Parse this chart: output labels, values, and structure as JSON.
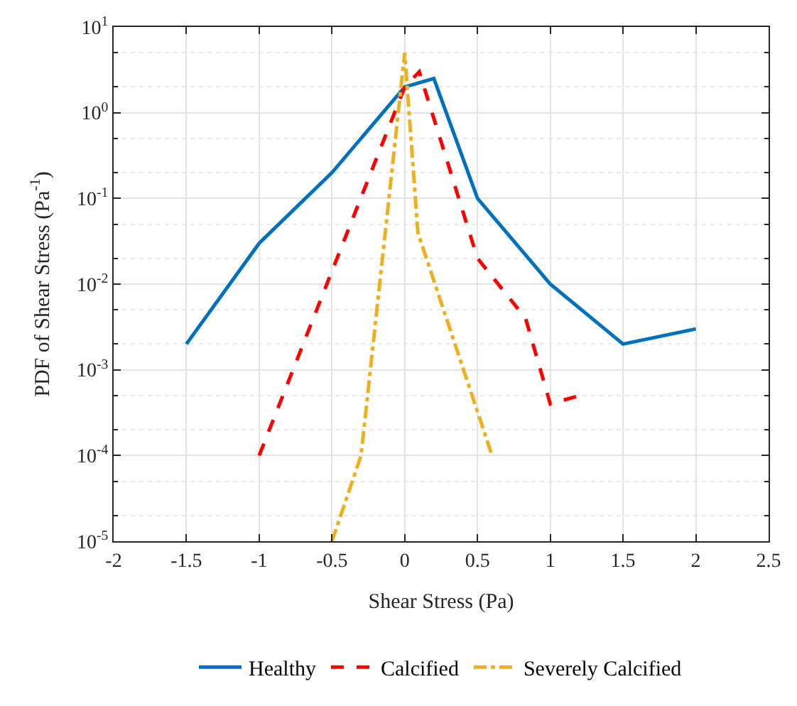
{
  "chart_data": {
    "type": "line",
    "xlabel": "Shear Stress (Pa)",
    "ylabel": "PDF of Shear Stress (Pa$^{-1}$)",
    "log": "y",
    "grid": true,
    "legend": "bottom",
    "xlim": [
      -2,
      2.5
    ],
    "xticks": [
      -2,
      -1.5,
      -1,
      -0.5,
      0,
      0.5,
      1,
      1.5,
      2,
      2.5
    ],
    "ylim": [
      1e-05,
      10
    ],
    "yticks": [
      {
        "value": 1e-05,
        "label": "10$^{-5}$"
      },
      {
        "value": 0.0001,
        "label": "10$^{-4}$"
      },
      {
        "value": 0.001,
        "label": "10$^{-3}$"
      },
      {
        "value": 0.01,
        "label": "10$^{-2}$"
      },
      {
        "value": 0.1,
        "label": "10$^{-1}$"
      },
      {
        "value": 1,
        "label": "10$^{0}$"
      },
      {
        "value": 10,
        "label": "10$^{1}$"
      }
    ],
    "series": [
      {
        "name": "Healthy",
        "color": "#0072bd",
        "line_style": "solid",
        "x": [
          -1.5,
          -1,
          -0.5,
          0,
          0.2,
          0.5,
          1,
          1.5,
          2
        ],
        "values": [
          0.002,
          0.03,
          0.2,
          2,
          2.5,
          0.1,
          0.01,
          0.002,
          0.003
        ]
      },
      {
        "name": "Calcified",
        "color": "#ff0000",
        "line_style": "dashed",
        "x": [
          -1,
          0,
          0.1,
          0.5,
          0.83,
          1,
          1.2
        ],
        "values": [
          0.0001,
          2,
          3,
          0.02,
          0.004,
          0.0004,
          0.0005
        ]
      },
      {
        "name": "Severely Calcified",
        "color": "#edb120",
        "line_style": "dashdot",
        "x": [
          -0.5,
          -0.3,
          0,
          0.09,
          0.6
        ],
        "values": [
          1e-05,
          0.0001,
          5,
          0.04,
          0.0001
        ]
      }
    ]
  }
}
